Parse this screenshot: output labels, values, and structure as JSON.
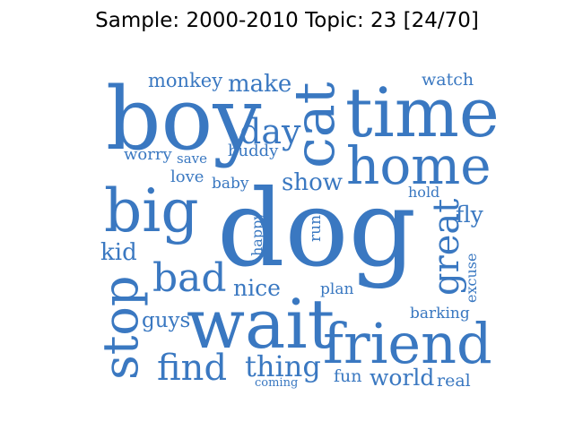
{
  "figure": {
    "title": "Sample: 2000-2010 Topic: 23 [24/70]"
  },
  "word_color": "#3a78c1",
  "words": [
    {
      "id": "dog",
      "text": "dog"
    },
    {
      "id": "boy",
      "text": "boy"
    },
    {
      "id": "time",
      "text": "time"
    },
    {
      "id": "wait",
      "text": "wait"
    },
    {
      "id": "friend",
      "text": "friend"
    },
    {
      "id": "big",
      "text": "big"
    },
    {
      "id": "home",
      "text": "home"
    },
    {
      "id": "cat",
      "text": "cat"
    },
    {
      "id": "stop",
      "text": "stop"
    },
    {
      "id": "great",
      "text": "great"
    },
    {
      "id": "bad",
      "text": "bad"
    },
    {
      "id": "find",
      "text": "find"
    },
    {
      "id": "day",
      "text": "day"
    },
    {
      "id": "thing",
      "text": "thing"
    },
    {
      "id": "show",
      "text": "show"
    },
    {
      "id": "make",
      "text": "make"
    },
    {
      "id": "monkey",
      "text": "monkey"
    },
    {
      "id": "watch",
      "text": "watch"
    },
    {
      "id": "nice",
      "text": "nice"
    },
    {
      "id": "guys",
      "text": "guys"
    },
    {
      "id": "kid",
      "text": "kid"
    },
    {
      "id": "world",
      "text": "world"
    },
    {
      "id": "fly",
      "text": "fly"
    },
    {
      "id": "buddy",
      "text": "buddy"
    },
    {
      "id": "worry",
      "text": "worry"
    },
    {
      "id": "love",
      "text": "love"
    },
    {
      "id": "baby",
      "text": "baby"
    },
    {
      "id": "save",
      "text": "save"
    },
    {
      "id": "hold",
      "text": "hold"
    },
    {
      "id": "happy",
      "text": "happy"
    },
    {
      "id": "run",
      "text": "run"
    },
    {
      "id": "plan",
      "text": "plan"
    },
    {
      "id": "excuse",
      "text": "excuse"
    },
    {
      "id": "barking",
      "text": "barking"
    },
    {
      "id": "fun",
      "text": "fun"
    },
    {
      "id": "real",
      "text": "real"
    },
    {
      "id": "coming",
      "text": "coming"
    }
  ]
}
